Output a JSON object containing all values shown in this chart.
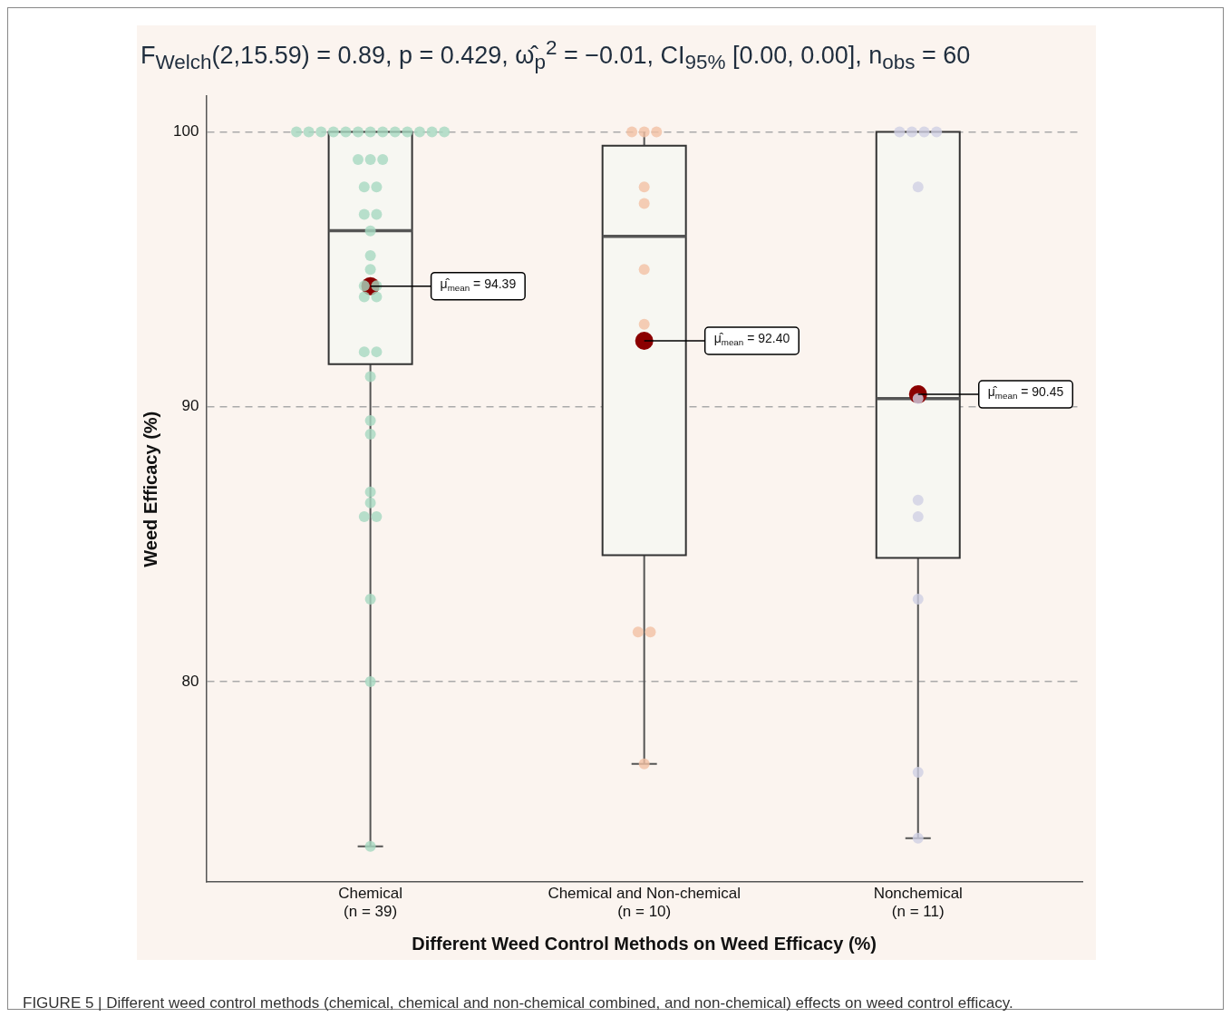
{
  "chart_data": {
    "type": "box",
    "title": "F$_{Welch}$(2,15.59) = 0.89, p = 0.429, ω̂$_{p}$$^{2}$ = −0.01, CI$_{95%}$ [0.00, 0.00], n$_{obs}$ = 60",
    "xlabel": "Different Weed Control Methods on Weed Efficacy (%)",
    "ylabel": "Weed Efficacy (%)",
    "categories": [
      "Chemical\n(n = 39)",
      "Chemical and Non-chemical\n(n = 10)",
      "Nonchemical\n(n = 11)"
    ],
    "boxes": [
      {
        "low": 74.0,
        "q1": 91.55,
        "median": 96.41,
        "q3": 100,
        "high": 100,
        "mean": 94.39
      },
      {
        "low": 77.0,
        "q1": 84.6,
        "median": 96.2,
        "q3": 99.5,
        "high": 100,
        "mean": 92.4
      },
      {
        "low": 74.3,
        "q1": 84.5,
        "median": 90.3,
        "q3": 100,
        "high": 100,
        "mean": 90.45
      }
    ],
    "series": [
      {
        "type": "scatter",
        "color": "#a6d8c0",
        "x": [
          "Chemical\n(n = 39)",
          "Chemical\n(n = 39)",
          "Chemical\n(n = 39)",
          "Chemical\n(n = 39)",
          "Chemical\n(n = 39)",
          "Chemical\n(n = 39)",
          "Chemical\n(n = 39)",
          "Chemical\n(n = 39)",
          "Chemical\n(n = 39)",
          "Chemical\n(n = 39)",
          "Chemical\n(n = 39)",
          "Chemical\n(n = 39)",
          "Chemical\n(n = 39)",
          "Chemical\n(n = 39)",
          "Chemical\n(n = 39)",
          "Chemical\n(n = 39)",
          "Chemical\n(n = 39)",
          "Chemical\n(n = 39)",
          "Chemical\n(n = 39)",
          "Chemical\n(n = 39)",
          "Chemical\n(n = 39)",
          "Chemical\n(n = 39)",
          "Chemical\n(n = 39)",
          "Chemical\n(n = 39)",
          "Chemical\n(n = 39)",
          "Chemical\n(n = 39)",
          "Chemical\n(n = 39)",
          "Chemical\n(n = 39)",
          "Chemical\n(n = 39)",
          "Chemical\n(n = 39)",
          "Chemical\n(n = 39)",
          "Chemical\n(n = 39)",
          "Chemical\n(n = 39)",
          "Chemical\n(n = 39)",
          "Chemical\n(n = 39)",
          "Chemical\n(n = 39)",
          "Chemical\n(n = 39)",
          "Chemical\n(n = 39)",
          "Chemical\n(n = 39)"
        ],
        "values": [
          100,
          100,
          100,
          100,
          100,
          100,
          100,
          100,
          100,
          100,
          100,
          100,
          100,
          99,
          99,
          99,
          98,
          98,
          97,
          97,
          96.4,
          95.5,
          95.0,
          94.4,
          94.4,
          94.0,
          94.0,
          92,
          92,
          91.1,
          89.5,
          89.0,
          86.9,
          86.5,
          86.0,
          86.0,
          83.0,
          80.0,
          74.0
        ]
      },
      {
        "type": "scatter",
        "color": "#f3c1a4",
        "x": [
          "Chemical and Non-chemical\n(n = 10)",
          "Chemical and Non-chemical\n(n = 10)",
          "Chemical and Non-chemical\n(n = 10)",
          "Chemical and Non-chemical\n(n = 10)",
          "Chemical and Non-chemical\n(n = 10)",
          "Chemical and Non-chemical\n(n = 10)",
          "Chemical and Non-chemical\n(n = 10)",
          "Chemical and Non-chemical\n(n = 10)",
          "Chemical and Non-chemical\n(n = 10)",
          "Chemical and Non-chemical\n(n = 10)"
        ],
        "values": [
          100,
          100,
          100,
          98,
          97.4,
          95,
          93,
          81.8,
          81.8,
          77
        ]
      },
      {
        "type": "scatter",
        "color": "#cfcfe3",
        "x": [
          "Nonchemical\n(n = 11)",
          "Nonchemical\n(n = 11)",
          "Nonchemical\n(n = 11)",
          "Nonchemical\n(n = 11)",
          "Nonchemical\n(n = 11)",
          "Nonchemical\n(n = 11)",
          "Nonchemical\n(n = 11)",
          "Nonchemical\n(n = 11)",
          "Nonchemical\n(n = 11)",
          "Nonchemical\n(n = 11)",
          "Nonchemical\n(n = 11)"
        ],
        "values": [
          100,
          100,
          100,
          100,
          98,
          90.3,
          86.6,
          86.0,
          83.0,
          76.7,
          74.3
        ]
      }
    ],
    "ylim": [
      72.7,
      101.3
    ],
    "yticks": [
      80,
      90,
      100
    ],
    "grid": "y",
    "legend": false,
    "annotations": [
      {
        "text": "μ̂$_{mean}$ = 94.39",
        "x": "Chemical\n(n = 39)",
        "y": 94.39
      },
      "μ̂$_{mean}$ = 92.40",
      {
        "text": "μ̂$_{mean}$ = 90.45",
        "x": "Nonchemical\n(n = 11)",
        "y": 90.45
      },
      "FIGURE 5 | Different weed control methods (chemical, chemical and non-chemical combined, and non-chemical) effects on weed control efficacy."
    ]
  }
}
